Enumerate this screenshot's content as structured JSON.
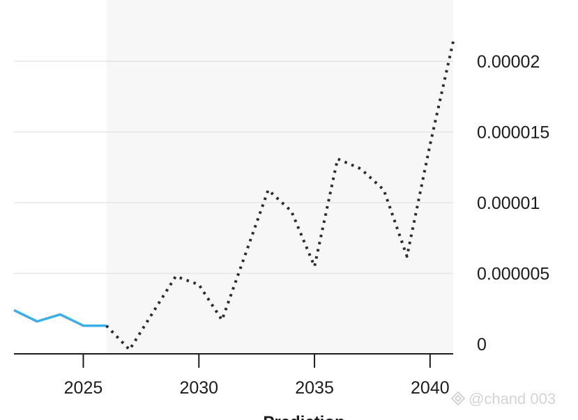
{
  "chart_data": {
    "type": "line",
    "title": "",
    "xlabel": "Prediction",
    "ylabel": "",
    "x_ticks": [
      "2025",
      "2030",
      "2035",
      "2040"
    ],
    "y_ticks": [
      "0",
      "0.000005",
      "0.00001",
      "0.000015",
      "0.00002"
    ],
    "xlim": [
      2022,
      2041
    ],
    "ylim": [
      -7e-07,
      2e-05
    ],
    "y_axis_position": "right",
    "grid": "horizontal",
    "prediction_region_start": 2026,
    "series": [
      {
        "style": "solid",
        "color": "#3aaee8",
        "x": [
          2022,
          2023,
          2024,
          2025,
          2026
        ],
        "values": [
          2.4e-06,
          1.6e-06,
          2.1e-06,
          1.3e-06,
          1.3e-06
        ]
      },
      {
        "style": "dotted",
        "color": "#2b2b2b",
        "x": [
          2026,
          2027,
          2028,
          2029,
          2030,
          2031,
          2032,
          2033,
          2034,
          2035,
          2036,
          2037,
          2038,
          2039,
          2040,
          2041
        ],
        "values": [
          1.3e-06,
          -4e-07,
          2.2e-06,
          4.8e-06,
          4.2e-06,
          1.7e-06,
          6.3e-06,
          1.09e-05,
          9.4e-06,
          5.5e-06,
          1.31e-05,
          1.24e-05,
          1.09e-05,
          6.2e-06,
          1.41e-05,
          2.14e-05
        ]
      }
    ]
  },
  "watermark": {
    "text": "@chand 003"
  }
}
